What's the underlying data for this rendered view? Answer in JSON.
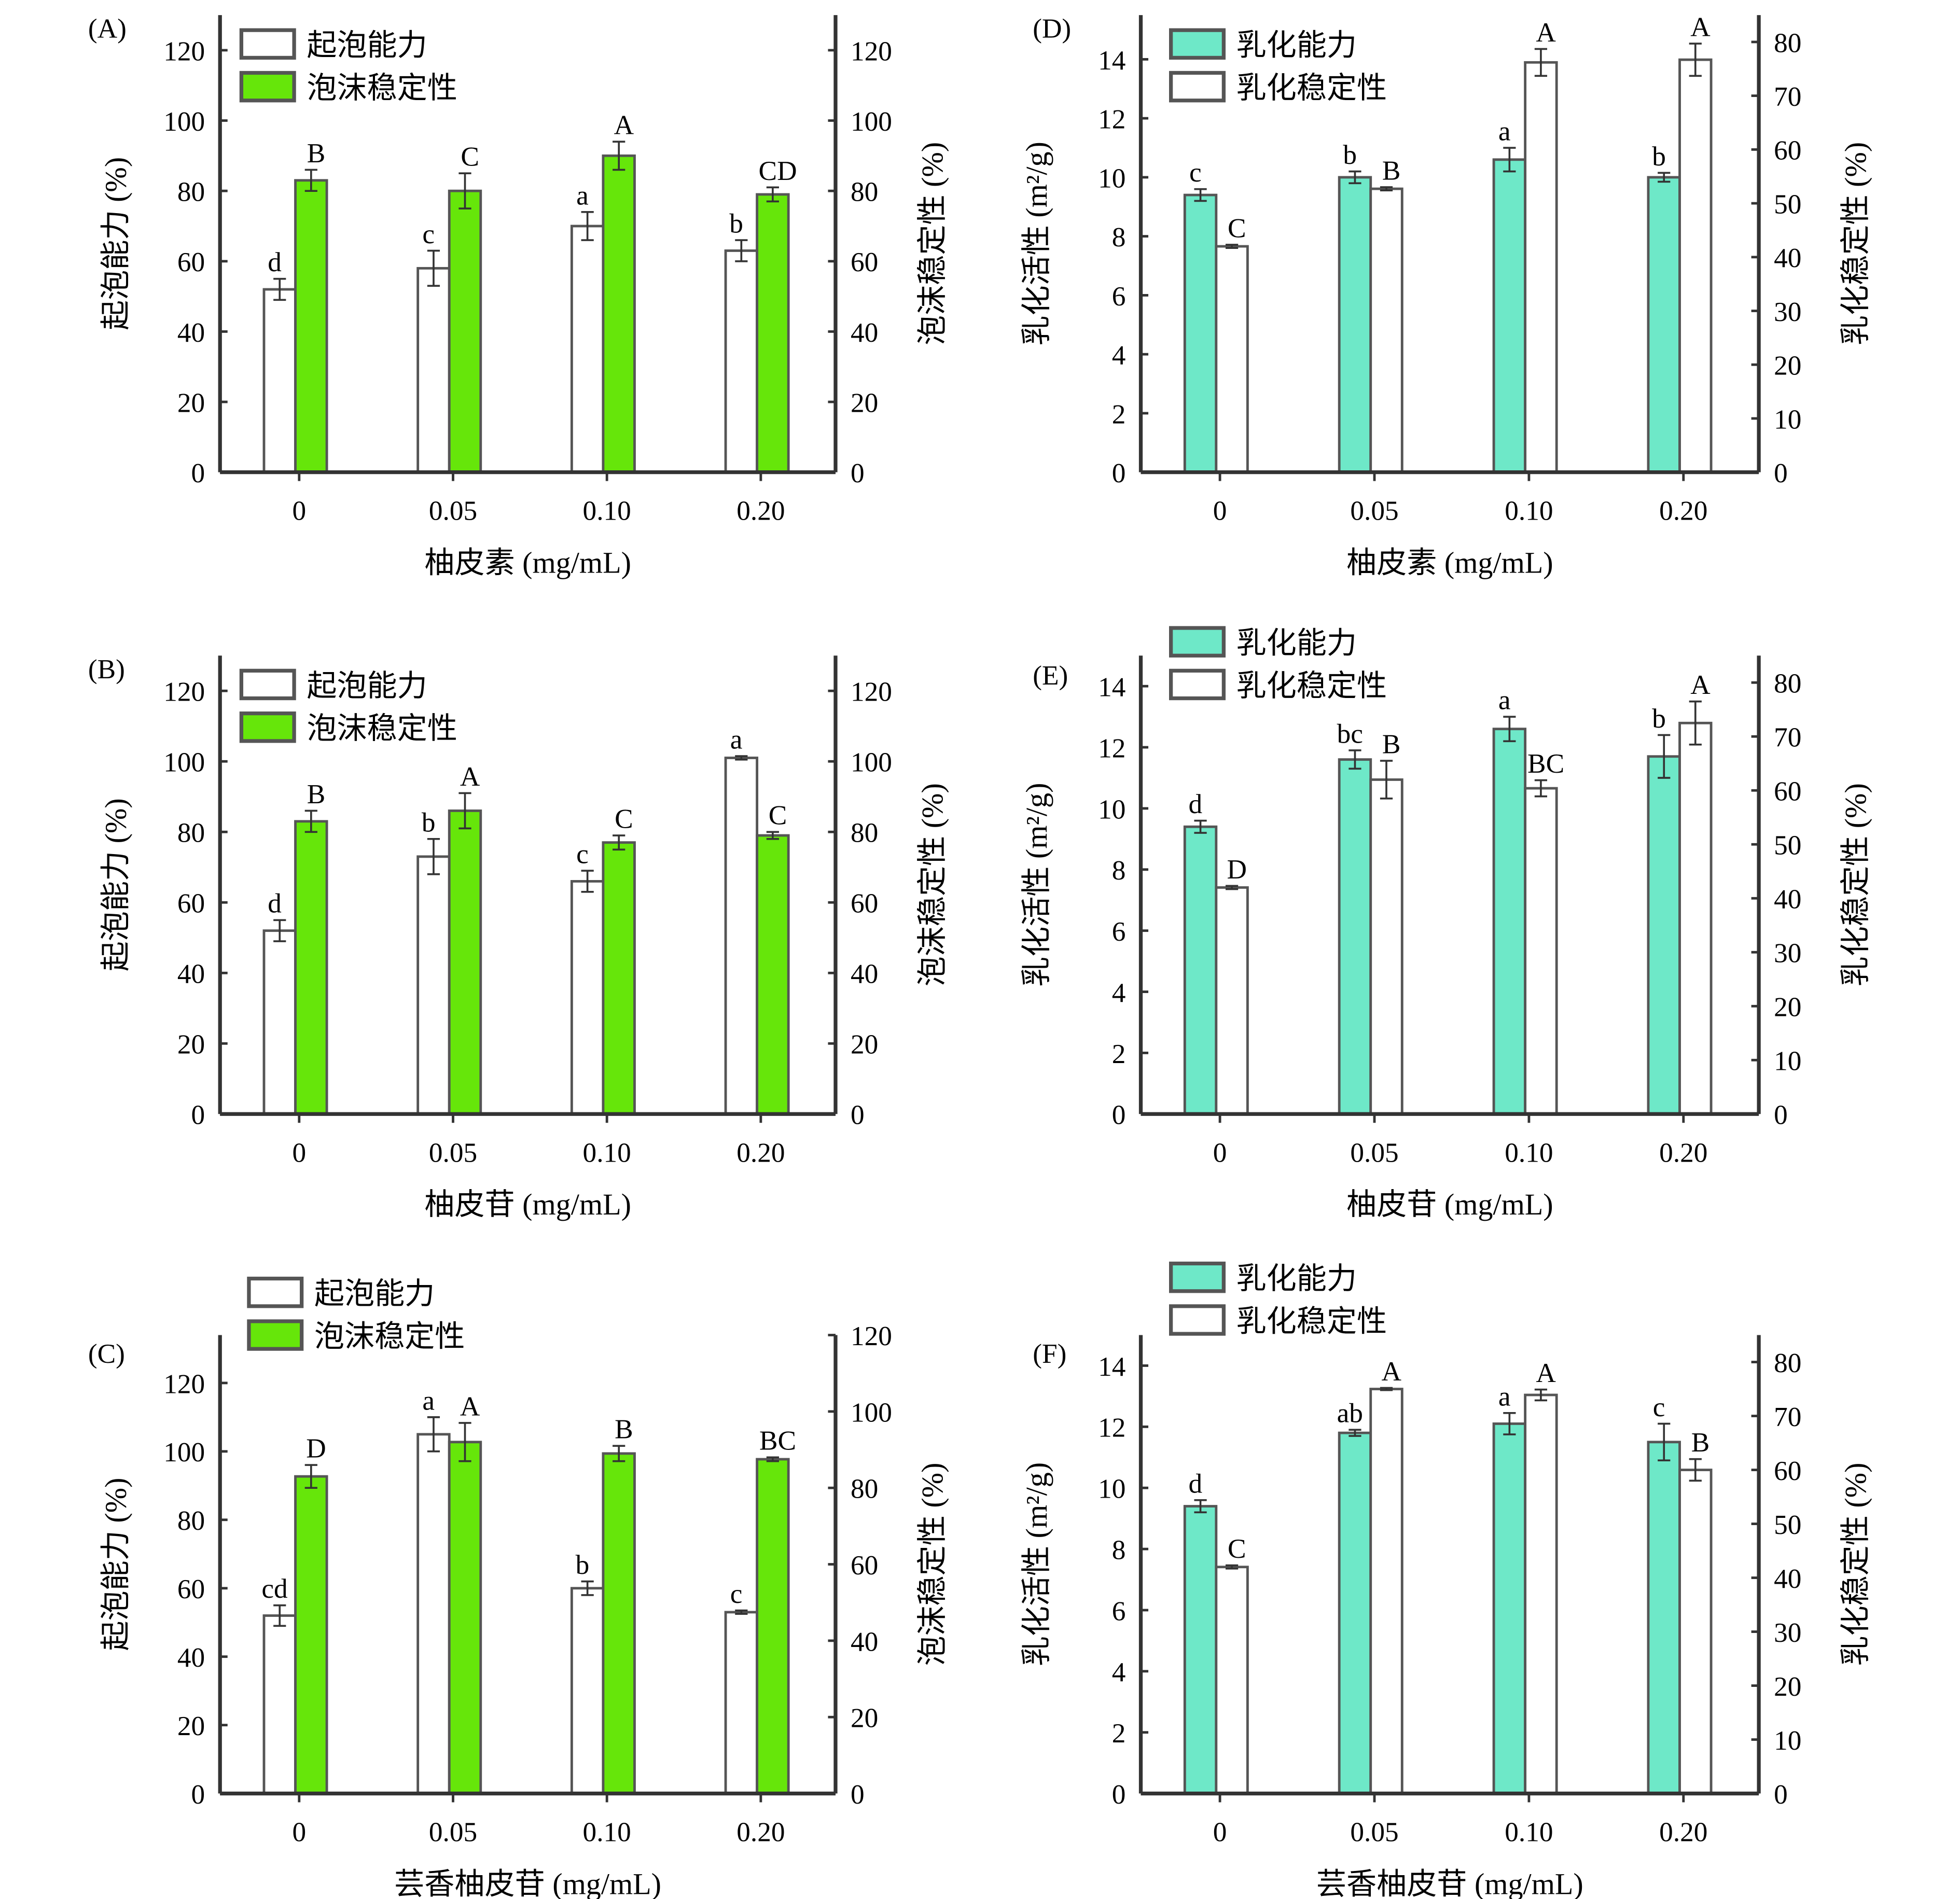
{
  "colors": {
    "foam_stability": "#66e60a",
    "emulsifying_activity": "#6ee8c8",
    "white": "#ffffff",
    "edge": "#333333"
  },
  "chart_data": [
    {
      "panel": "(A)",
      "type": "bar",
      "categories": [
        "0",
        "0.05",
        "0.10",
        "0.20"
      ],
      "xlabel": "柚皮素 (mg/mL)",
      "ylabel": "起泡能力 (%)",
      "ylabel_right": "泡沫稳定性 (%)",
      "yticks": [
        0,
        20,
        40,
        60,
        80,
        100,
        120
      ],
      "yticks_right": [
        0,
        20,
        40,
        60,
        80,
        100,
        120
      ],
      "ylim": [
        0,
        130
      ],
      "ylim_right": [
        0,
        130
      ],
      "series": [
        {
          "name": "起泡能力",
          "axis": "left",
          "fill": "white",
          "values": [
            52,
            58,
            70,
            63
          ],
          "errors": [
            3,
            5,
            4,
            3
          ],
          "letters": [
            "d",
            "c",
            "a",
            "b"
          ]
        },
        {
          "name": "泡沫稳定性",
          "axis": "right",
          "fill": "green",
          "values": [
            83,
            80,
            90,
            79
          ],
          "errors": [
            3,
            5,
            4,
            2
          ],
          "letters": [
            "B",
            "C",
            "A",
            "CD"
          ]
        }
      ]
    },
    {
      "panel": "(B)",
      "type": "bar",
      "categories": [
        "0",
        "0.05",
        "0.10",
        "0.20"
      ],
      "xlabel": "柚皮苷 (mg/mL)",
      "ylabel": "起泡能力 (%)",
      "ylabel_right": "泡沫稳定性 (%)",
      "yticks": [
        0,
        20,
        40,
        60,
        80,
        100,
        120
      ],
      "yticks_right": [
        0,
        20,
        40,
        60,
        80,
        100,
        120
      ],
      "ylim": [
        0,
        130
      ],
      "ylim_right": [
        0,
        130
      ],
      "series": [
        {
          "name": "起泡能力",
          "axis": "left",
          "fill": "white",
          "values": [
            52,
            73,
            66,
            101
          ],
          "errors": [
            3,
            5,
            3,
            0.5
          ],
          "letters": [
            "d",
            "b",
            "c",
            "a"
          ]
        },
        {
          "name": "泡沫稳定性",
          "axis": "right",
          "fill": "green",
          "values": [
            83,
            86,
            77,
            79
          ],
          "errors": [
            3,
            5,
            2,
            1
          ],
          "letters": [
            "B",
            "A",
            "C",
            "C"
          ]
        }
      ]
    },
    {
      "panel": "(C)",
      "type": "bar",
      "categories": [
        "0",
        "0.05",
        "0.10",
        "0.20"
      ],
      "xlabel": "芸香柚皮苷 (mg/mL)",
      "ylabel": "起泡能力 (%)",
      "ylabel_right": "泡沫稳定性 (%)",
      "yticks": [
        0,
        20,
        40,
        60,
        80,
        100,
        120
      ],
      "yticks_right": [
        0,
        20,
        40,
        60,
        80,
        100,
        120
      ],
      "ylim": [
        0,
        134
      ],
      "ylim_right": [
        0,
        120
      ],
      "series": [
        {
          "name": "起泡能力",
          "axis": "left",
          "fill": "white",
          "values": [
            52,
            105,
            60,
            53
          ],
          "errors": [
            3,
            5,
            2,
            0.5
          ],
          "letters": [
            "cd",
            "a",
            "b",
            "c"
          ]
        },
        {
          "name": "泡沫稳定性",
          "axis": "right",
          "fill": "green",
          "values": [
            83,
            92,
            89,
            87.5
          ],
          "errors": [
            3,
            5,
            2,
            0.5
          ],
          "letters": [
            "D",
            "A",
            "B",
            "BC"
          ]
        }
      ]
    },
    {
      "panel": "(D)",
      "type": "bar",
      "categories": [
        "0",
        "0.05",
        "0.10",
        "0.20"
      ],
      "xlabel": "柚皮素 (mg/mL)",
      "ylabel": "乳化活性 (m²/g)",
      "ylabel_right": "乳化稳定性 (%)",
      "yticks": [
        0,
        2,
        4,
        6,
        8,
        10,
        12,
        14
      ],
      "yticks_right": [
        0,
        10,
        20,
        30,
        40,
        50,
        60,
        70,
        80
      ],
      "ylim": [
        0,
        15.5
      ],
      "ylim_right": [
        0,
        85
      ],
      "series": [
        {
          "name": "乳化能力",
          "axis": "left",
          "fill": "teal",
          "values": [
            9.4,
            10.0,
            10.6,
            10.0
          ],
          "errors": [
            0.2,
            0.2,
            0.4,
            0.15
          ],
          "letters": [
            "c",
            "b",
            "a",
            "b"
          ]
        },
        {
          "name": "乳化稳定性",
          "axis": "right",
          "fill": "white",
          "values": [
            42,
            52.7,
            76.2,
            76.7
          ],
          "errors": [
            0.3,
            0.3,
            2.5,
            3
          ],
          "letters": [
            "C",
            "B",
            "A",
            "A"
          ]
        }
      ]
    },
    {
      "panel": "(E)",
      "type": "bar",
      "categories": [
        "0",
        "0.05",
        "0.10",
        "0.20"
      ],
      "xlabel": "柚皮苷 (mg/mL)",
      "ylabel": "乳化活性 (m²/g)",
      "ylabel_right": "乳化稳定性 (%)",
      "yticks": [
        0,
        2,
        4,
        6,
        8,
        10,
        12,
        14
      ],
      "yticks_right": [
        0,
        10,
        20,
        30,
        40,
        50,
        60,
        70,
        80
      ],
      "ylim": [
        0,
        15
      ],
      "ylim_right": [
        0,
        85
      ],
      "series": [
        {
          "name": "乳化能力",
          "axis": "left",
          "fill": "teal",
          "values": [
            9.4,
            11.6,
            12.6,
            11.7
          ],
          "errors": [
            0.2,
            0.3,
            0.4,
            0.7
          ],
          "letters": [
            "d",
            "bc",
            "a",
            "b"
          ]
        },
        {
          "name": "乳化稳定性",
          "axis": "right",
          "fill": "white",
          "values": [
            42,
            62,
            60.4,
            72.5
          ],
          "errors": [
            0.3,
            3.5,
            1.5,
            4
          ],
          "letters": [
            "D",
            "B",
            "BC",
            "A"
          ]
        }
      ]
    },
    {
      "panel": "(F)",
      "type": "bar",
      "categories": [
        "0",
        "0.05",
        "0.10",
        "0.20"
      ],
      "xlabel": "芸香柚皮苷 (mg/mL)",
      "ylabel": "乳化活性 (m²/g)",
      "ylabel_right": "乳化稳定性 (%)",
      "yticks": [
        0,
        2,
        4,
        6,
        8,
        10,
        12,
        14
      ],
      "yticks_right": [
        0,
        10,
        20,
        30,
        40,
        50,
        60,
        70,
        80
      ],
      "ylim": [
        0,
        15
      ],
      "ylim_right": [
        0,
        85
      ],
      "series": [
        {
          "name": "乳化能力",
          "axis": "left",
          "fill": "teal",
          "values": [
            9.4,
            11.8,
            12.1,
            11.5
          ],
          "errors": [
            0.2,
            0.1,
            0.35,
            0.6
          ],
          "letters": [
            "d",
            "ab",
            "a",
            "c"
          ]
        },
        {
          "name": "乳化稳定性",
          "axis": "right",
          "fill": "white",
          "values": [
            42,
            75,
            73.9,
            60
          ],
          "errors": [
            0.3,
            0.2,
            1,
            2
          ],
          "letters": [
            "C",
            "A",
            "A",
            "B"
          ]
        }
      ]
    }
  ]
}
